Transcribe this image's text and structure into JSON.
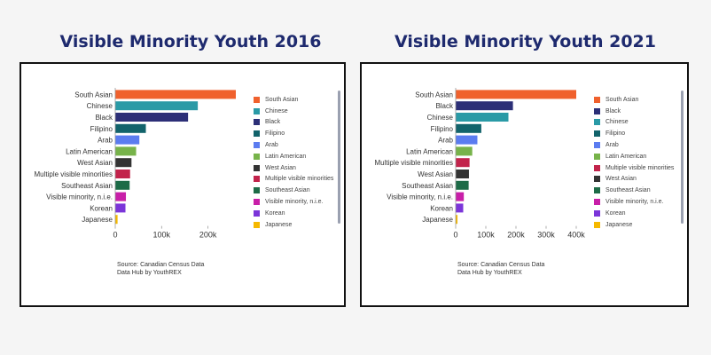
{
  "titles": {
    "left": "Visible Minority Youth 2016",
    "right": "Visible Minority Youth 2021"
  },
  "source": {
    "line1": "Source: Canadian Census Data",
    "line2": "Data Hub by YouthREX"
  },
  "chart_data": [
    {
      "type": "bar",
      "orientation": "horizontal",
      "title": "Visible Minority Youth 2016",
      "categories": [
        "South Asian",
        "Chinese",
        "Black",
        "Filipino",
        "Arab",
        "Latin American",
        "West Asian",
        "Multiple visible minorities",
        "Southeast Asian",
        "Visible minority, n.i.e.",
        "Korean",
        "Japanese"
      ],
      "values": [
        260000,
        178000,
        157000,
        66000,
        52000,
        45000,
        35000,
        32000,
        31000,
        23000,
        22000,
        5000
      ],
      "colors": [
        "#f0612d",
        "#2a9aa6",
        "#2c2f77",
        "#12636b",
        "#5b7cf0",
        "#77b34a",
        "#333333",
        "#c2234b",
        "#1d6b47",
        "#c81fa8",
        "#7b35d9",
        "#f5b800"
      ],
      "xlim": [
        0,
        260000
      ],
      "xticks": [
        0,
        100000,
        200000
      ],
      "xtick_labels": [
        "0",
        "100k",
        "200k"
      ],
      "legend": [
        "South Asian",
        "Chinese",
        "Black",
        "Filipino",
        "Arab",
        "Latin American",
        "West Asian",
        "Multiple visible minorities",
        "Southeast Asian",
        "Visible minority, n.i.e.",
        "Korean",
        "Japanese"
      ],
      "legend_colors": [
        "#f0612d",
        "#2a9aa6",
        "#2c2f77",
        "#12636b",
        "#5b7cf0",
        "#77b34a",
        "#333333",
        "#c2234b",
        "#1d6b47",
        "#c81fa8",
        "#7b35d9",
        "#f5b800"
      ],
      "legend_position": "right",
      "grid": false
    },
    {
      "type": "bar",
      "orientation": "horizontal",
      "title": "Visible Minority Youth 2021",
      "categories": [
        "South Asian",
        "Black",
        "Chinese",
        "Filipino",
        "Arab",
        "Latin American",
        "Multiple visible minorities",
        "West Asian",
        "Southeast Asian",
        "Visible minority, n.i.e.",
        "Korean",
        "Japanese"
      ],
      "values": [
        400000,
        190000,
        175000,
        85000,
        72000,
        55000,
        46000,
        44000,
        43000,
        27000,
        25000,
        6000
      ],
      "colors": [
        "#f0612d",
        "#2c2f77",
        "#2a9aa6",
        "#12636b",
        "#5b7cf0",
        "#77b34a",
        "#c2234b",
        "#333333",
        "#1d6b47",
        "#c81fa8",
        "#7b35d9",
        "#f5b800"
      ],
      "xlim": [
        0,
        400000
      ],
      "xticks": [
        0,
        100000,
        200000,
        300000,
        400000
      ],
      "xtick_labels": [
        "0",
        "100k",
        "200k",
        "300k",
        "400k"
      ],
      "legend": [
        "South Asian",
        "Black",
        "Chinese",
        "Filipino",
        "Arab",
        "Latin American",
        "Multiple visible minorities",
        "West Asian",
        "Southeast Asian",
        "Visible minority, n.i.e.",
        "Korean",
        "Japanese"
      ],
      "legend_colors": [
        "#f0612d",
        "#2c2f77",
        "#2a9aa6",
        "#12636b",
        "#5b7cf0",
        "#77b34a",
        "#c2234b",
        "#333333",
        "#1d6b47",
        "#c81fa8",
        "#7b35d9",
        "#f5b800"
      ],
      "legend_position": "right",
      "grid": false
    }
  ]
}
